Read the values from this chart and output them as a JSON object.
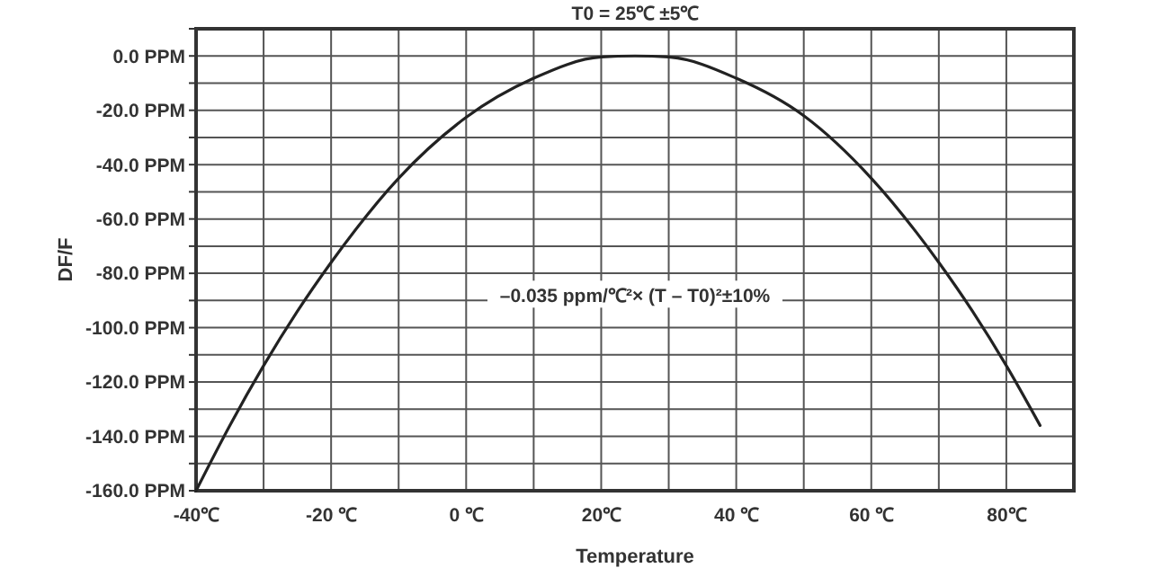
{
  "chart_data": {
    "type": "line",
    "title": "T0 = 25℃ ±5℃",
    "xlabel": "Temperature",
    "ylabel": "DF/F",
    "annotations": [
      "–0.035 ppm/℃²× (T – T0)²±10%"
    ],
    "x": [
      -40,
      -35,
      -30,
      -25,
      -20,
      -10,
      0,
      10,
      20,
      25,
      30,
      40,
      50,
      60,
      70,
      75,
      80,
      85
    ],
    "series": [
      {
        "color": "#222222",
        "values": [
          -160,
          -136,
          -114,
          -94,
          -76,
          -45,
          -22.6,
          -8.2,
          -0.4,
          0,
          -0.4,
          -8.2,
          -22,
          -45,
          -76,
          -94,
          -114,
          -136
        ]
      }
    ],
    "xlim": [
      -40,
      90
    ],
    "ylim": [
      -160,
      10
    ],
    "xticks": [
      {
        "value": -40,
        "label": "-40℃"
      },
      {
        "value": -30,
        "label": null
      },
      {
        "value": -20,
        "label": "-20 ℃"
      },
      {
        "value": -10,
        "label": null
      },
      {
        "value": 0,
        "label": "0 ℃"
      },
      {
        "value": 10,
        "label": null
      },
      {
        "value": 20,
        "label": "20℃"
      },
      {
        "value": 30,
        "label": null
      },
      {
        "value": 40,
        "label": "40 ℃"
      },
      {
        "value": 50,
        "label": null
      },
      {
        "value": 60,
        "label": "60 ℃"
      },
      {
        "value": 70,
        "label": null
      },
      {
        "value": 80,
        "label": "80℃"
      },
      {
        "value": 90,
        "label": null
      }
    ],
    "yticks": [
      {
        "value": 10,
        "label": null
      },
      {
        "value": 0,
        "label": "0.0 PPM"
      },
      {
        "value": -10,
        "label": null
      },
      {
        "value": -20,
        "label": "-20.0 PPM"
      },
      {
        "value": -30,
        "label": null
      },
      {
        "value": -40,
        "label": "-40.0 PPM"
      },
      {
        "value": -50,
        "label": null
      },
      {
        "value": -60,
        "label": "-60.0 PPM"
      },
      {
        "value": -70,
        "label": null
      },
      {
        "value": -80,
        "label": "-80.0 PPM"
      },
      {
        "value": -90,
        "label": null
      },
      {
        "value": -100,
        "label": "-100.0 PPM"
      },
      {
        "value": -110,
        "label": null
      },
      {
        "value": -120,
        "label": "-120.0 PPM"
      },
      {
        "value": -130,
        "label": null
      },
      {
        "value": -140,
        "label": "-140.0 PPM"
      },
      {
        "value": -150,
        "label": null
      },
      {
        "value": -160,
        "label": "-160.0 PPM"
      }
    ],
    "grid": true,
    "marker": "none",
    "line_style": "solid"
  }
}
